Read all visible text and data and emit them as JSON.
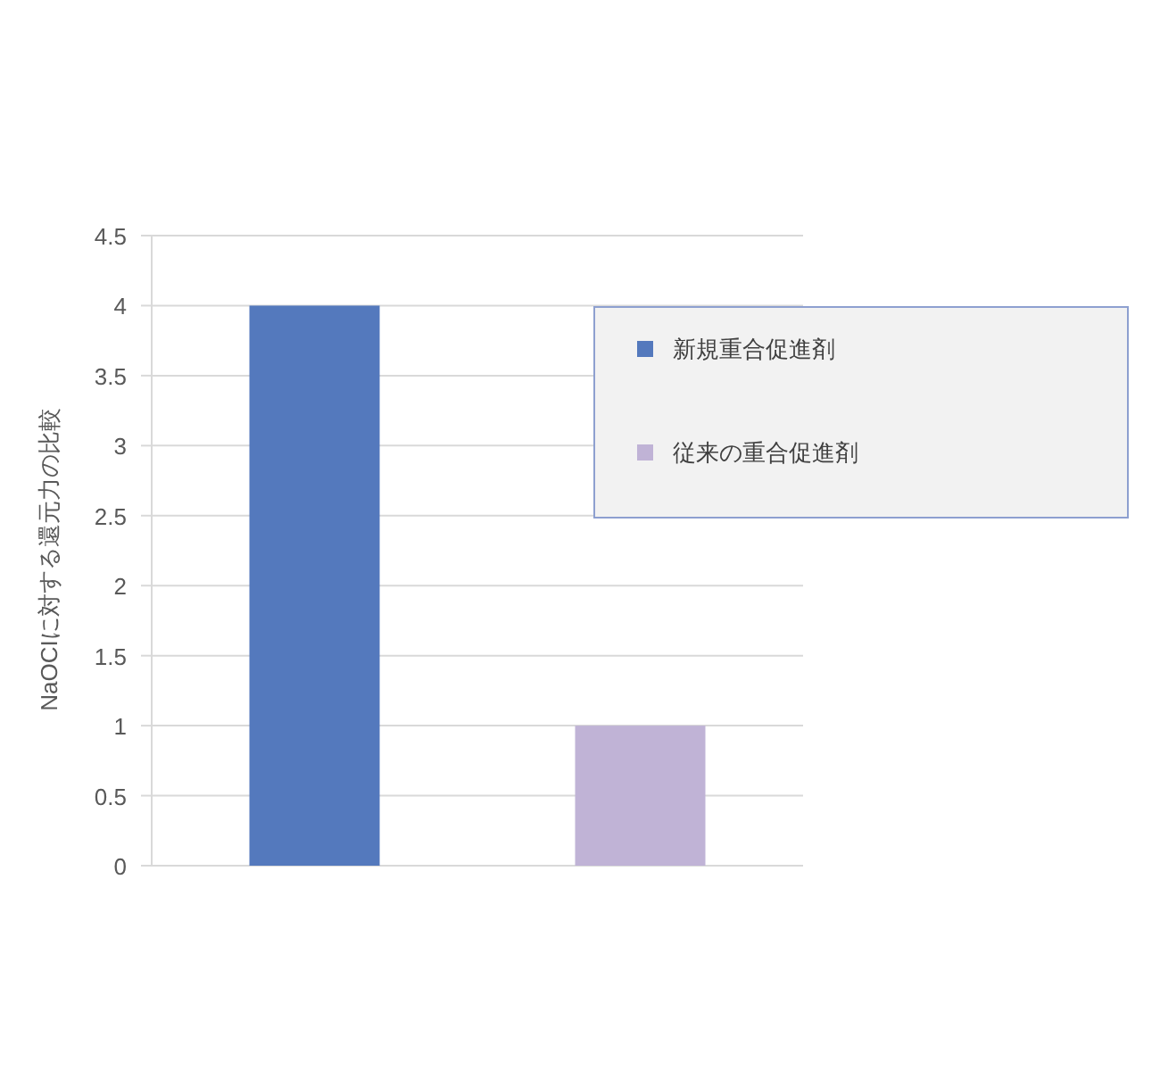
{
  "chart_data": {
    "type": "bar",
    "ylabel": "NaOCIに対する還元力の比較",
    "categories": [
      null,
      null
    ],
    "series": [
      {
        "name": "新規重合促進剤",
        "color": "#5479bd",
        "values": [
          4,
          null
        ]
      },
      {
        "name": "従来の重合促進剤",
        "color": "#c0b3d6",
        "values": [
          null,
          1
        ]
      }
    ],
    "ylim": [
      0,
      4.5
    ],
    "yticks": [
      0,
      0.5,
      1,
      1.5,
      2,
      2.5,
      3,
      3.5,
      4,
      4.5
    ],
    "grid": "y",
    "legend": "top right"
  }
}
